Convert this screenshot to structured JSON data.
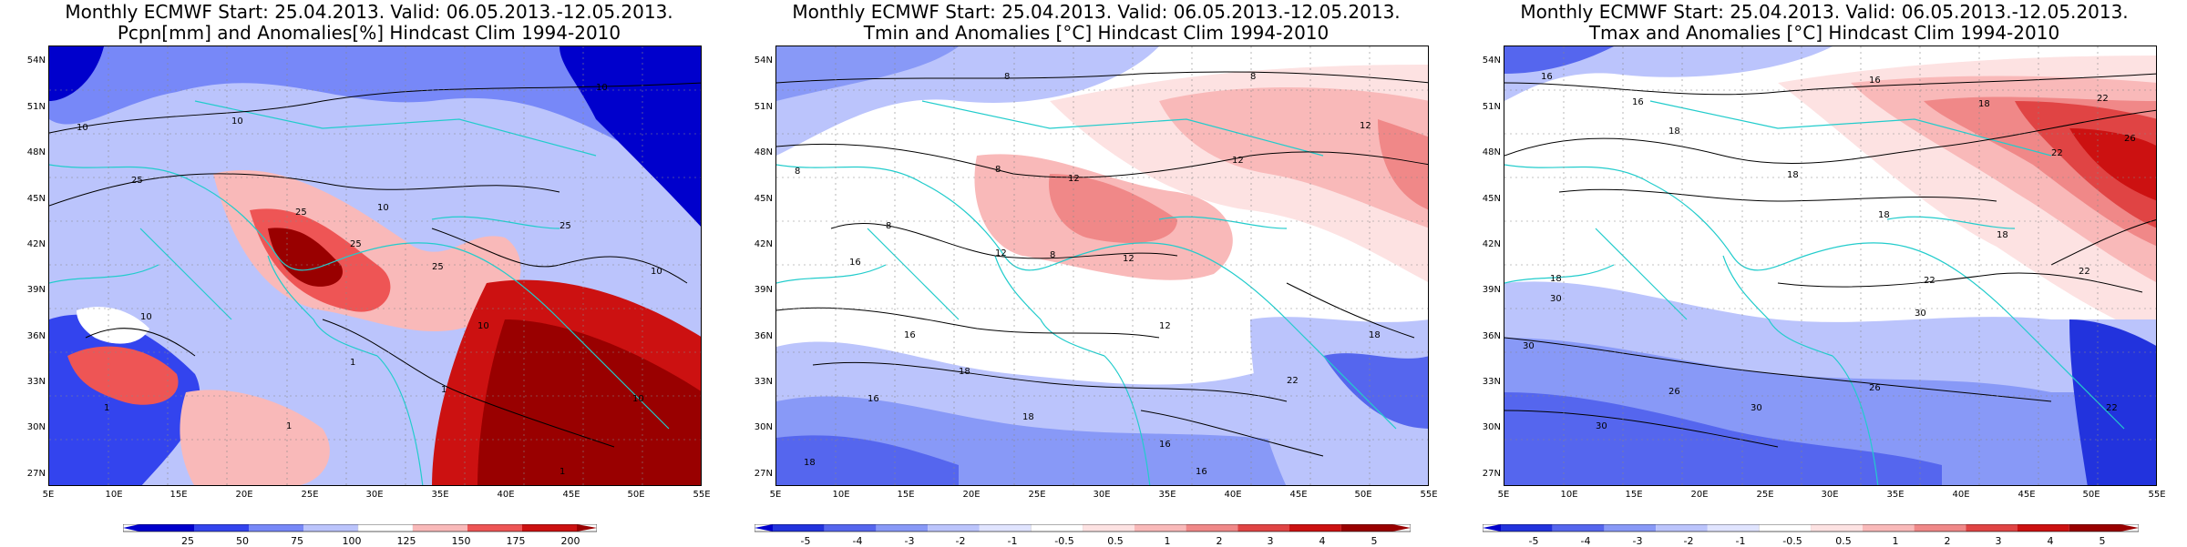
{
  "panels": [
    {
      "id": "pcpn",
      "title_line1": "Monthly ECMWF Start: 25.04.2013. Valid: 06.05.2013.-12.05.2013.",
      "title_line2": "Pcpn[mm] and Anomalies[%] Hindcast Clim 1994-2010",
      "colorbar_labels": [
        "25",
        "50",
        "75",
        "100",
        "125",
        "150",
        "175",
        "200"
      ],
      "contour_labels": [
        "10",
        "10",
        "25",
        "10",
        "25",
        "25",
        "10",
        "25",
        "25",
        "10",
        "1",
        "10",
        "10",
        "1",
        "1",
        "1",
        "10",
        "1"
      ]
    },
    {
      "id": "tmin",
      "title_line1": "Monthly ECMWF Start: 25.04.2013. Valid: 06.05.2013.-12.05.2013.",
      "title_line2": "Tmin and Anomalies [°C] Hindcast Clim 1994-2010",
      "colorbar_labels": [
        "-5",
        "-4",
        "-3",
        "-2",
        "-1",
        "-0.5",
        "0.5",
        "1",
        "2",
        "3",
        "4",
        "5"
      ],
      "contour_labels": [
        "8",
        "8",
        "8",
        "12",
        "12",
        "12",
        "8",
        "8",
        "16",
        "12",
        "8",
        "12",
        "16",
        "12",
        "18",
        "16",
        "18",
        "22",
        "16",
        "18",
        "18",
        "16"
      ]
    },
    {
      "id": "tmax",
      "title_line1": "Monthly ECMWF Start: 25.04.2013. Valid: 06.05.2013.-12.05.2013.",
      "title_line2": "Tmax and Anomalies [°C] Hindcast Clim 1994-2010",
      "colorbar_labels": [
        "-5",
        "-4",
        "-3",
        "-2",
        "-1",
        "-0.5",
        "0.5",
        "1",
        "2",
        "3",
        "4",
        "5"
      ],
      "contour_labels": [
        "16",
        "16",
        "16",
        "18",
        "22",
        "26",
        "22",
        "18",
        "18",
        "18",
        "18",
        "18",
        "22",
        "22",
        "30",
        "26",
        "30",
        "26",
        "30",
        "22",
        "30",
        "30"
      ]
    }
  ],
  "lat_ticks": [
    "54N",
    "51N",
    "48N",
    "45N",
    "42N",
    "39N",
    "36N",
    "33N",
    "30N",
    "27N"
  ],
  "lon_ticks": [
    "5E",
    "10E",
    "15E",
    "20E",
    "25E",
    "30E",
    "35E",
    "40E",
    "45E",
    "50E",
    "55E"
  ],
  "colors": {
    "pcpn_scale": [
      "#0000cc",
      "#3344ee",
      "#7788f8",
      "#bbc4fc",
      "#ffffff",
      "#f9b9b9",
      "#ee5555",
      "#cc1111",
      "#990000"
    ],
    "temp_scale": [
      "#0000cc",
      "#2233dd",
      "#5566ee",
      "#8899f7",
      "#bbc4fc",
      "#e0e4ff",
      "#ffffff",
      "#fde2e2",
      "#f9b9b9",
      "#f08888",
      "#e04444",
      "#cc1111",
      "#990000"
    ],
    "coast": "#22cccc"
  }
}
